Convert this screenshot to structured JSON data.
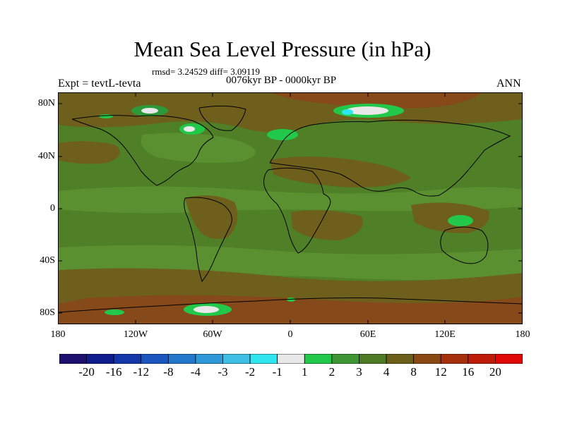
{
  "title": "Mean Sea Level Pressure (in hPa)",
  "stats": "rmsd= 3.24529 diff= 3.09119",
  "left_label": "Expt = tevtL-tevta",
  "center_label": "0076kyr BP - 0000kyr BP",
  "right_label": "ANN",
  "lat_ticks": [
    "80N",
    "40N",
    "0",
    "40S",
    "80S"
  ],
  "lon_ticks": [
    "180",
    "120W",
    "60W",
    "0",
    "60E",
    "120E",
    "180"
  ],
  "colorbar": {
    "labels": [
      "-20",
      "-16",
      "-12",
      "-8",
      "-4",
      "-3",
      "-2",
      "-1",
      "1",
      "2",
      "3",
      "4",
      "8",
      "12",
      "16",
      "20"
    ],
    "colors": [
      "#1c0f6e",
      "#0f1d8c",
      "#1336a8",
      "#1a56be",
      "#2378cc",
      "#2e98d8",
      "#3ec0e6",
      "#2fe6f0",
      "#e8e8e8",
      "#22c84a",
      "#3d9632",
      "#4e7a23",
      "#6a5e18",
      "#8a4812",
      "#a4300c",
      "#bd1c08",
      "#e00806"
    ]
  }
}
